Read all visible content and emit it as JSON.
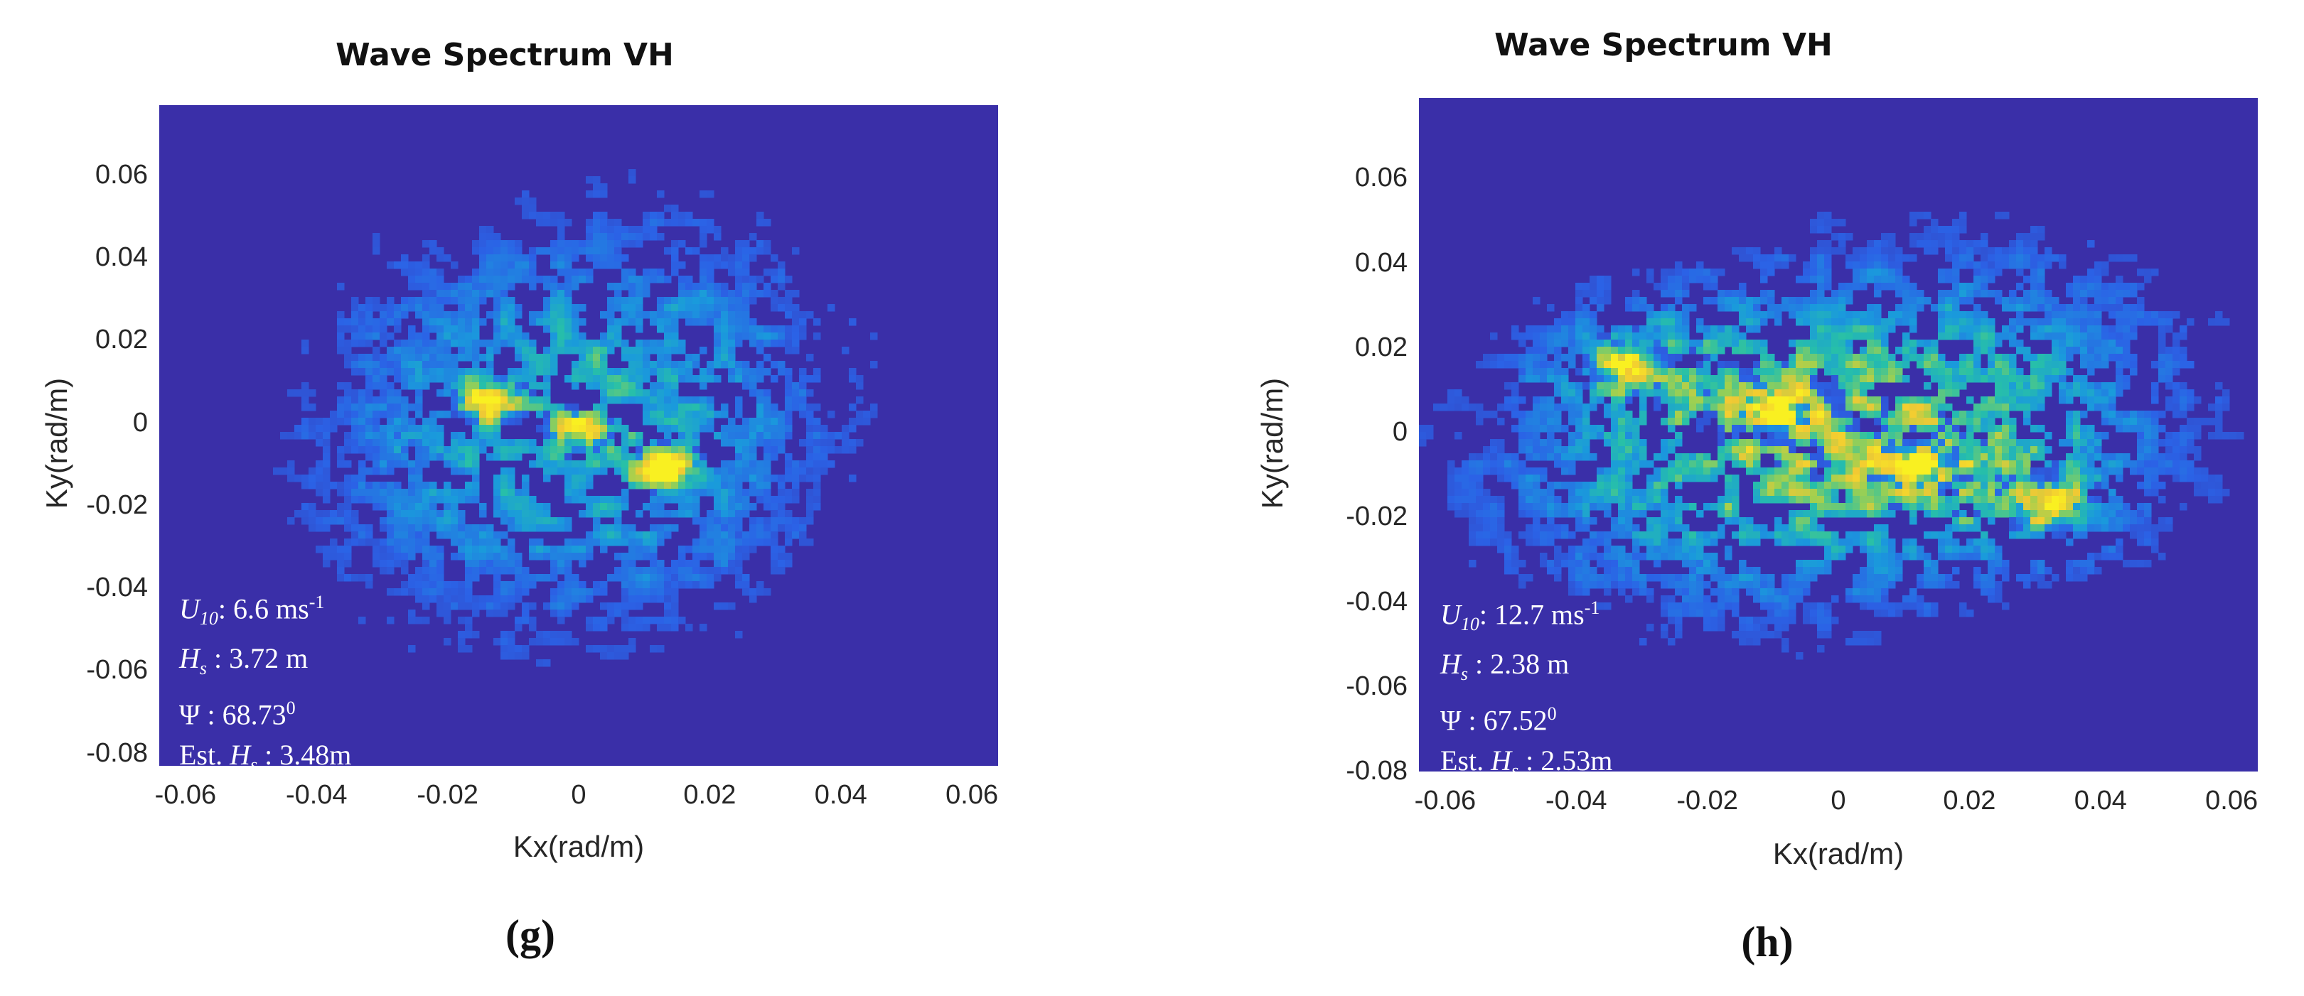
{
  "chart_data": [
    {
      "type": "heatmap",
      "panel": "g",
      "title": "Wave Spectrum VH",
      "xlabel": "Kx(rad/m)",
      "ylabel": "Ky(rad/m)",
      "xlim": [
        -0.064,
        0.064
      ],
      "ylim": [
        -0.083,
        0.077
      ],
      "xticks": [
        "-0.06",
        "-0.04",
        "-0.02",
        "0",
        "0.02",
        "0.04",
        "0.06"
      ],
      "xtick_values": [
        -0.06,
        -0.04,
        -0.02,
        0,
        0.02,
        0.04,
        0.06
      ],
      "yticks": [
        "0.06",
        "0.04",
        "0.02",
        "0",
        "-0.02",
        "-0.04",
        "-0.06",
        "-0.08"
      ],
      "ytick_values": [
        0.06,
        0.04,
        0.02,
        0,
        -0.02,
        -0.04,
        -0.06,
        -0.08
      ],
      "colormap": [
        "#3a2fa8",
        "#2b62e6",
        "#1a9adc",
        "#27c0a8",
        "#9fd050",
        "#f2c933",
        "#f9f021"
      ],
      "background": "#3a2fa8",
      "peaks": [
        {
          "kx": -0.0135,
          "ky": 0.0055,
          "intensity": 1.0
        },
        {
          "kx": 0.0135,
          "ky": -0.011,
          "intensity": 1.0
        },
        {
          "kx": 0.0,
          "ky": -0.002,
          "intensity": 0.6
        }
      ],
      "spread": {
        "sx": 0.026,
        "sy": 0.034,
        "rotation_deg": -8,
        "density": 0.55
      },
      "annotation": {
        "u10_symbol": "U",
        "u10_sub": "10",
        "u10_value": ": 6.6  ms",
        "u10_unit_exp": "-1",
        "hs_symbol": "H",
        "hs_sub": "s",
        "hs_value": " : 3.72 m",
        "psi_text": "Ψ : 68.73",
        "psi_exp": "0",
        "est_prefix": "Est. ",
        "est_symbol": "H",
        "est_sub": "s",
        "est_value": " : 3.48m"
      },
      "caption": "(g)"
    },
    {
      "type": "heatmap",
      "panel": "h",
      "title": "Wave Spectrum VH",
      "xlabel": "Kx(rad/m)",
      "ylabel": "Ky(rad/m)",
      "xlim": [
        -0.064,
        0.064
      ],
      "ylim": [
        -0.08,
        0.079
      ],
      "xticks": [
        "-0.06",
        "-0.04",
        "-0.02",
        "0",
        "0.02",
        "0.04",
        "0.06"
      ],
      "xtick_values": [
        -0.06,
        -0.04,
        -0.02,
        0,
        0.02,
        0.04,
        0.06
      ],
      "yticks": [
        "0.06",
        "0.04",
        "0.02",
        "0",
        "-0.02",
        "-0.04",
        "-0.06",
        "-0.08"
      ],
      "ytick_values": [
        0.06,
        0.04,
        0.02,
        0,
        -0.02,
        -0.04,
        -0.06,
        -0.08
      ],
      "colormap": [
        "#3a2fa8",
        "#2b62e6",
        "#1a9adc",
        "#27c0a8",
        "#9fd050",
        "#f2c933",
        "#f9f021"
      ],
      "background": "#3a2fa8",
      "peaks": [
        {
          "kx": -0.032,
          "ky": 0.016,
          "intensity": 1.0
        },
        {
          "kx": -0.01,
          "ky": 0.006,
          "intensity": 0.9
        },
        {
          "kx": 0.012,
          "ky": -0.008,
          "intensity": 0.85
        },
        {
          "kx": 0.032,
          "ky": -0.017,
          "intensity": 1.0
        }
      ],
      "spread": {
        "sx": 0.034,
        "sy": 0.026,
        "rotation_deg": 18,
        "density": 0.75
      },
      "annotation": {
        "u10_symbol": "U",
        "u10_sub": "10",
        "u10_value": ": 12.7 ms",
        "u10_unit_exp": "-1",
        "hs_symbol": "H",
        "hs_sub": "s",
        "hs_value": " : 2.38 m",
        "psi_text": "Ψ : 67.52",
        "psi_exp": "0",
        "est_prefix": "Est. ",
        "est_symbol": "H",
        "est_sub": "s",
        "est_value": " : 2.53m"
      },
      "caption": "(h)"
    }
  ]
}
